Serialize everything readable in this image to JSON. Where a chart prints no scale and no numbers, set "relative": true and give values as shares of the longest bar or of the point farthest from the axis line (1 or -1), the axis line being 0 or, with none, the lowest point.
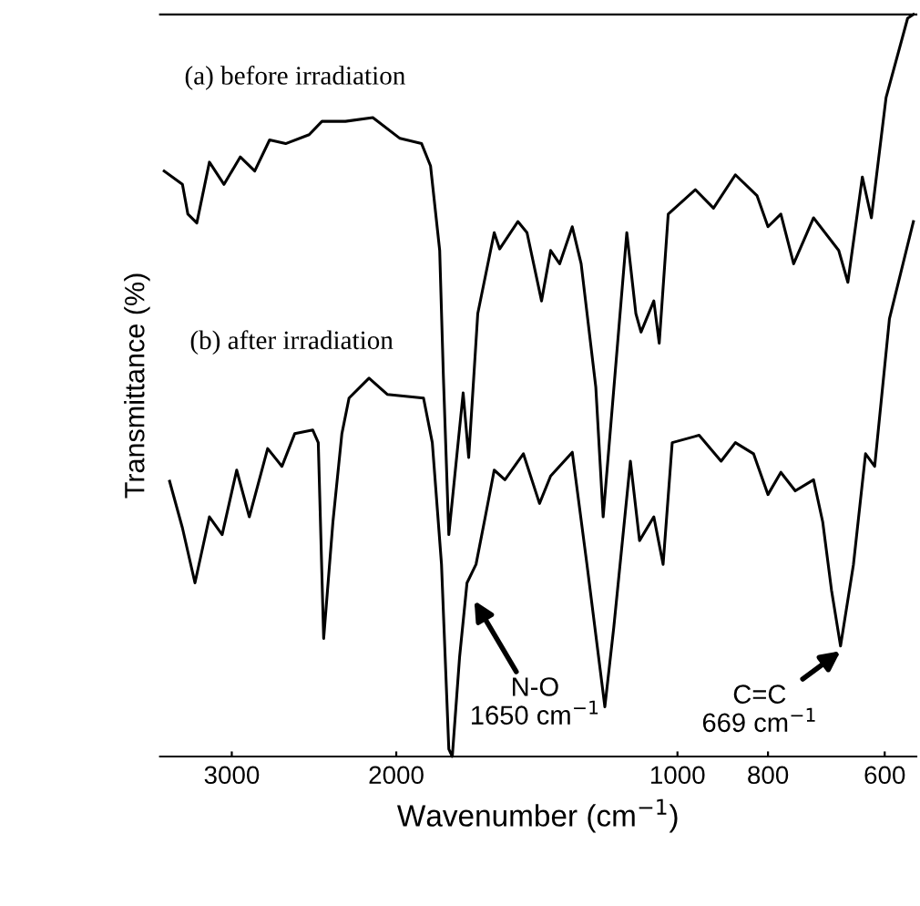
{
  "chart_data": {
    "type": "line",
    "relative": true,
    "log": "x",
    "xlabel": "Wavenumber (cm$^{−1}$)",
    "ylabel": "Transmittance (%)",
    "xlim": [
      3580,
      555
    ],
    "xticks": [
      3000,
      2000,
      1000,
      800,
      600
    ],
    "grid": false,
    "legend": false,
    "marker": "none",
    "line_style": "solid",
    "series": [
      {
        "name": "(a) before irradiation",
        "color": "#000000",
        "x": [
          3544,
          3388,
          3343,
          3270,
          3170,
          3058,
          2938,
          2835,
          2733,
          2627,
          2479,
          2402,
          2267,
          2119,
          1982,
          1879,
          1838,
          1797,
          1781,
          1757,
          1696,
          1673,
          1636,
          1571,
          1550,
          1482,
          1449,
          1398,
          1367,
          1337,
          1296,
          1268,
          1223,
          1201,
          1133,
          1108,
          1094,
          1060,
          1046,
          1023,
          957,
          915,
          867,
          822,
          800,
          775,
          751,
          715,
          672,
          657,
          634,
          620,
          598,
          567,
          559
        ],
        "values": [
          0.789,
          0.771,
          0.731,
          0.719,
          0.801,
          0.771,
          0.808,
          0.789,
          0.831,
          0.826,
          0.838,
          0.856,
          0.856,
          0.861,
          0.833,
          0.826,
          0.796,
          0.682,
          0.515,
          0.299,
          0.49,
          0.403,
          0.597,
          0.706,
          0.684,
          0.721,
          0.706,
          0.614,
          0.682,
          0.664,
          0.714,
          0.664,
          0.498,
          0.323,
          0.706,
          0.597,
          0.572,
          0.614,
          0.557,
          0.731,
          0.764,
          0.739,
          0.784,
          0.756,
          0.714,
          0.731,
          0.664,
          0.726,
          0.682,
          0.639,
          0.781,
          0.726,
          0.888,
          0.995,
          1.0
        ]
      },
      {
        "name": "(b) after irradiation",
        "color": "#000000",
        "x": [
          3497,
          3388,
          3285,
          3170,
          3072,
          2964,
          2873,
          2746,
          2651,
          2569,
          2457,
          2424,
          2392,
          2338,
          2287,
          2247,
          2139,
          2045,
          1870,
          1830,
          1789,
          1757,
          1742,
          1711,
          1680,
          1643,
          1606,
          1571,
          1530,
          1462,
          1405,
          1367,
          1296,
          1250,
          1196,
          1170,
          1123,
          1098,
          1060,
          1036,
          1013,
          948,
          898,
          867,
          829,
          800,
          775,
          748,
          715,
          699,
          684,
          669,
          648,
          629,
          615,
          593,
          559
        ],
        "values": [
          0.371,
          0.308,
          0.234,
          0.323,
          0.299,
          0.386,
          0.323,
          0.415,
          0.391,
          0.435,
          0.44,
          0.423,
          0.159,
          0.316,
          0.435,
          0.483,
          0.51,
          0.488,
          0.483,
          0.423,
          0.259,
          0.01,
          0.0,
          0.134,
          0.234,
          0.259,
          0.323,
          0.386,
          0.373,
          0.408,
          0.341,
          0.378,
          0.41,
          0.259,
          0.067,
          0.174,
          0.398,
          0.291,
          0.323,
          0.259,
          0.423,
          0.433,
          0.398,
          0.423,
          0.408,
          0.353,
          0.383,
          0.358,
          0.373,
          0.316,
          0.224,
          0.149,
          0.259,
          0.408,
          0.391,
          0.59,
          0.721
        ]
      }
    ],
    "annotations": [
      {
        "text": "N-O\n1650 cm$^{−1}$",
        "x": 1650,
        "y": 0.21
      },
      {
        "text": "C=C\n669 cm$^{−1}$",
        "x": 669,
        "y": 0.142
      }
    ]
  }
}
